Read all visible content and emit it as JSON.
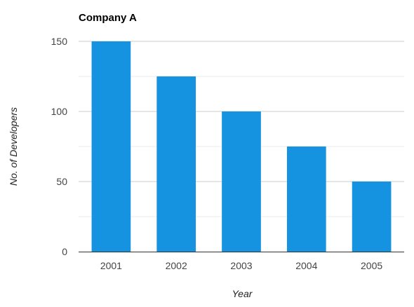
{
  "chart_data": {
    "type": "bar",
    "title": "Company A",
    "xlabel": "Year",
    "ylabel": "No. of Developers",
    "categories": [
      "2001",
      "2002",
      "2003",
      "2004",
      "2005"
    ],
    "values": [
      150,
      125,
      100,
      75,
      50
    ],
    "ylim": [
      0,
      150
    ],
    "yticks": [
      0,
      50,
      100,
      150
    ],
    "grid": true,
    "legend": "none",
    "bar_color": "#1592e0",
    "grid_major_color": "#cccccc",
    "grid_minor_color": "#ebebeb",
    "axis_color": "#333333"
  }
}
